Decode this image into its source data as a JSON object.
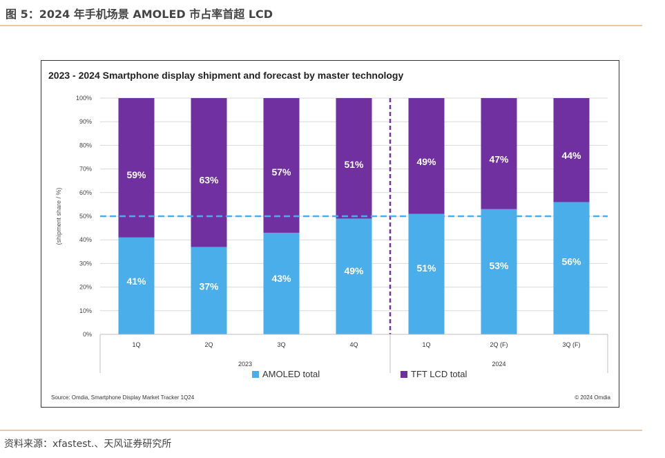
{
  "figure": {
    "title": "图 5：2024 年手机场景 AMOLED 市占率首超 LCD",
    "source": "资料来源：xfastest.、天风证券研究所"
  },
  "chart_data": {
    "type": "bar",
    "stacked": true,
    "title": "2023 - 2024 Smartphone display shipment and forecast by master technology",
    "ylabel": "(shipment share / %)",
    "xlabel": "",
    "ylim": [
      0,
      100
    ],
    "yticks": [
      "0%",
      "10%",
      "20%",
      "30%",
      "40%",
      "50%",
      "60%",
      "70%",
      "80%",
      "90%",
      "100%"
    ],
    "categories": [
      "1Q",
      "2Q",
      "3Q",
      "4Q",
      "1Q",
      "2Q (F)",
      "3Q (F)"
    ],
    "groups": [
      {
        "label": "2023",
        "count": 4
      },
      {
        "label": "2024",
        "count": 3
      }
    ],
    "series": [
      {
        "name": "AMOLED total",
        "color": "#4aaeea",
        "values": [
          41,
          37,
          43,
          49,
          51,
          53,
          56
        ],
        "labels": [
          "41%",
          "37%",
          "43%",
          "49%",
          "51%",
          "53%",
          "56%"
        ]
      },
      {
        "name": "TFT LCD total",
        "color": "#7030a0",
        "values": [
          59,
          63,
          57,
          51,
          49,
          47,
          44
        ],
        "labels": [
          "59%",
          "63%",
          "57%",
          "51%",
          "49%",
          "47%",
          "44%"
        ]
      }
    ],
    "reference_line": {
      "value": 50,
      "color": "#4aaeea",
      "style": "dashed"
    },
    "divider_after_category": 4,
    "divider_color": "#7030a0",
    "grid": true,
    "legend_position": "bottom",
    "footnote_left": "Source: Omdia, Smartphone Display Market Tracker 1Q24",
    "footnote_right": "© 2024 Omdia"
  }
}
